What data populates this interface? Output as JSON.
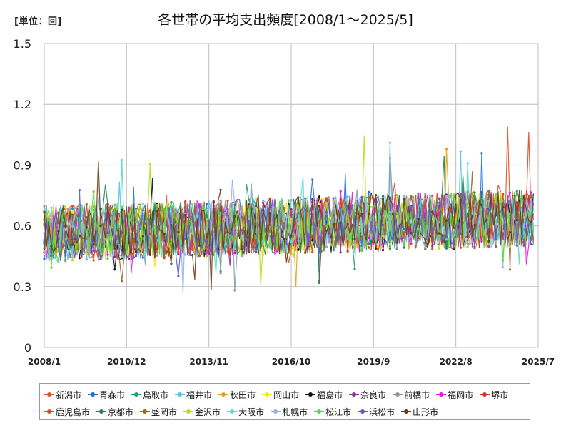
{
  "header": {
    "unit_label": "[単位：回]",
    "title": "各世帯の平均支出頻度[2008/1～2025/5]"
  },
  "chart_data": {
    "type": "line",
    "title": "各世帯の平均支出頻度[2008/1～2025/5]",
    "ylabel": "[単位：回]",
    "xlabel": "",
    "ylim": [
      0,
      1.5
    ],
    "y_ticks": [
      "0",
      "0.3",
      "0.6",
      "0.9",
      "1.2",
      "1.5"
    ],
    "y_tick_values": [
      0,
      0.3,
      0.6,
      0.9,
      1.2,
      1.5
    ],
    "x_ticks": [
      "2008/1",
      "2010/12",
      "2013/11",
      "2016/10",
      "2019/9",
      "2022/8",
      "2025/7"
    ],
    "x_range": [
      "2008/1",
      "2025/7"
    ],
    "grid": true,
    "legend_position": "bottom",
    "series": [
      {
        "name": "新潟市",
        "color": "#E8501F"
      },
      {
        "name": "青森市",
        "color": "#1F6FE0"
      },
      {
        "name": "鳥取市",
        "color": "#1F9E6E"
      },
      {
        "name": "福井市",
        "color": "#5BC0EB"
      },
      {
        "name": "秋田市",
        "color": "#E8A317"
      },
      {
        "name": "岡山市",
        "color": "#F5E21B"
      },
      {
        "name": "福島市",
        "color": "#111111"
      },
      {
        "name": "奈良市",
        "color": "#8E2E9E"
      },
      {
        "name": "前橋市",
        "color": "#8C9AA6"
      },
      {
        "name": "福岡市",
        "color": "#E21BE0"
      },
      {
        "name": "堺市",
        "color": "#D8351D"
      },
      {
        "name": "鹿児島市",
        "color": "#E2452B"
      },
      {
        "name": "京都市",
        "color": "#1C8A55"
      },
      {
        "name": "盛岡市",
        "color": "#A0662A"
      },
      {
        "name": "金沢市",
        "color": "#B7E01F"
      },
      {
        "name": "大阪市",
        "color": "#4FE0C8"
      },
      {
        "name": "札幌市",
        "color": "#9AAEE8"
      },
      {
        "name": "松江市",
        "color": "#55E02A"
      },
      {
        "name": "浜松市",
        "color": "#5A5EC8"
      },
      {
        "name": "山形市",
        "color": "#6B3A1E"
      }
    ]
  }
}
